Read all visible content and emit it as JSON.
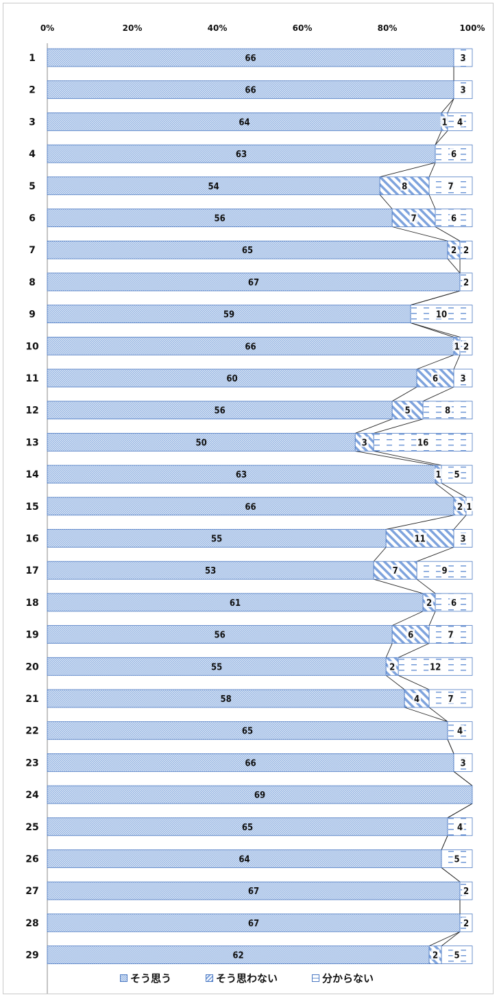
{
  "chart_data": {
    "type": "bar",
    "orientation": "horizontal",
    "stacked": "percent",
    "x_ticks": [
      "0%",
      "20%",
      "40%",
      "60%",
      "80%",
      "100%"
    ],
    "categories": [
      "1",
      "2",
      "3",
      "4",
      "5",
      "6",
      "7",
      "8",
      "9",
      "10",
      "11",
      "12",
      "13",
      "14",
      "15",
      "16",
      "17",
      "18",
      "19",
      "20",
      "21",
      "22",
      "23",
      "24",
      "25",
      "26",
      "27",
      "28",
      "29"
    ],
    "series": [
      {
        "name": "そう思う",
        "pattern": "checker",
        "values": [
          66,
          66,
          64,
          63,
          54,
          56,
          65,
          67,
          59,
          66,
          60,
          56,
          50,
          63,
          66,
          55,
          53,
          61,
          56,
          55,
          58,
          65,
          66,
          69,
          65,
          64,
          67,
          67,
          62
        ]
      },
      {
        "name": "そう思わない",
        "pattern": "diagonal",
        "values": [
          0,
          0,
          1,
          0,
          8,
          7,
          2,
          0,
          0,
          1,
          6,
          5,
          3,
          1,
          2,
          11,
          7,
          2,
          6,
          2,
          4,
          0,
          0,
          0,
          0,
          0,
          0,
          0,
          2
        ]
      },
      {
        "name": "分からない",
        "pattern": "dashed",
        "values": [
          3,
          3,
          4,
          6,
          7,
          6,
          2,
          2,
          10,
          2,
          3,
          8,
          16,
          5,
          1,
          3,
          9,
          6,
          7,
          12,
          7,
          4,
          3,
          0,
          4,
          5,
          2,
          2,
          5
        ]
      }
    ],
    "series_lines": true,
    "legend_position": "bottom",
    "grid": false,
    "colors": {
      "border": "#4a78c2",
      "fill_light": "#dde7f5",
      "pattern": "#7ea3dd"
    }
  }
}
